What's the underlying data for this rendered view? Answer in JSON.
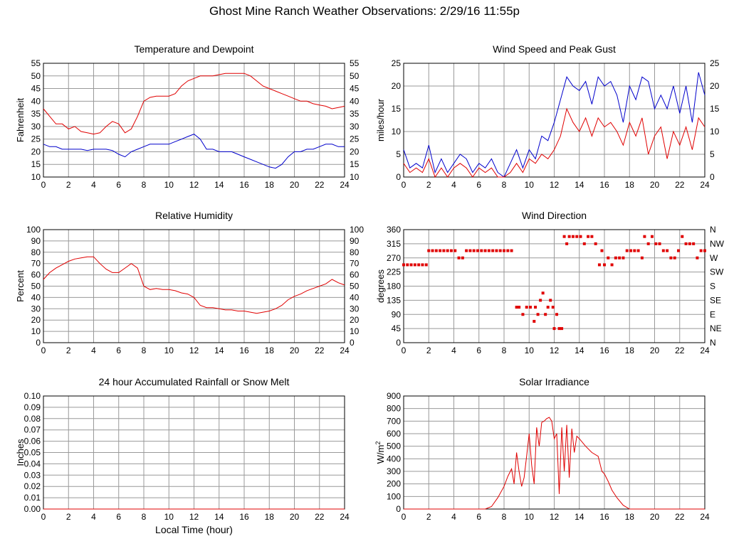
{
  "page": {
    "title": "Ghost Mine Ranch Weather Observations: 2/29/16 11:55p"
  },
  "colors": {
    "primary": "#e00000",
    "secondary": "#0000cc",
    "grid": "#999999"
  },
  "chart_data": [
    {
      "id": "temp",
      "type": "line",
      "title": "Temperature and Dewpoint",
      "ylabel": "Fahrenheit",
      "xlabel": "",
      "xlim": [
        0,
        24
      ],
      "ylim": [
        10,
        55
      ],
      "xticks": [
        0,
        2,
        4,
        6,
        8,
        10,
        12,
        14,
        16,
        18,
        20,
        22,
        24
      ],
      "yticks": [
        10,
        15,
        20,
        25,
        30,
        35,
        40,
        45,
        50,
        55
      ],
      "right_ticks": [
        "10",
        "15",
        "20",
        "25",
        "30",
        "35",
        "40",
        "45",
        "50",
        "55"
      ],
      "grid": true,
      "series": [
        {
          "color": "#e00000",
          "x": [
            0,
            0.5,
            1,
            1.5,
            2,
            2.5,
            3,
            3.5,
            4,
            4.5,
            5,
            5.5,
            6,
            6.5,
            7,
            7.5,
            8,
            8.5,
            9,
            9.5,
            10,
            10.5,
            11,
            11.5,
            12,
            12.5,
            13,
            13.5,
            14,
            14.5,
            15,
            15.5,
            16,
            16.5,
            17,
            17.5,
            18,
            18.5,
            19,
            19.5,
            20,
            20.5,
            21,
            21.5,
            22,
            22.5,
            23,
            23.5,
            24
          ],
          "y": [
            37,
            34,
            31,
            31,
            29,
            30,
            28,
            27.5,
            27,
            27.5,
            30,
            32,
            31,
            27.5,
            29,
            34,
            40,
            41.5,
            42,
            42,
            42,
            43,
            46,
            48,
            49,
            50,
            50,
            50,
            50.5,
            51,
            51,
            51,
            51,
            50,
            48,
            46,
            45,
            44,
            43,
            42,
            41,
            40,
            40,
            39,
            38.5,
            38,
            37,
            37.5,
            38
          ]
        },
        {
          "color": "#0000cc",
          "x": [
            0,
            0.5,
            1,
            1.5,
            2,
            2.5,
            3,
            3.5,
            4,
            4.5,
            5,
            5.5,
            6,
            6.5,
            7,
            7.5,
            8,
            8.5,
            9,
            9.5,
            10,
            10.5,
            11,
            11.5,
            12,
            12.5,
            13,
            13.5,
            14,
            14.5,
            15,
            15.5,
            16,
            16.5,
            17,
            17.5,
            18,
            18.5,
            19,
            19.5,
            20,
            20.5,
            21,
            21.5,
            22,
            22.5,
            23,
            23.5,
            24
          ],
          "y": [
            23,
            22,
            22,
            21,
            21,
            21,
            21,
            20.5,
            21,
            21,
            21,
            20.5,
            19,
            18,
            20,
            21,
            22,
            23,
            23,
            23,
            23,
            24,
            25,
            26,
            27,
            25,
            21,
            21,
            20,
            20,
            20,
            19,
            18,
            17,
            16,
            15,
            14,
            13.5,
            15,
            18,
            20,
            20,
            21,
            21,
            22,
            23,
            23,
            22,
            22
          ]
        }
      ]
    },
    {
      "id": "wind",
      "type": "line",
      "title": "Wind Speed and Peak Gust",
      "ylabel": "miles/hour",
      "xlabel": "",
      "xlim": [
        0,
        24
      ],
      "ylim": [
        0,
        25
      ],
      "xticks": [
        0,
        2,
        4,
        6,
        8,
        10,
        12,
        14,
        16,
        18,
        20,
        22,
        24
      ],
      "yticks": [
        0,
        5,
        10,
        15,
        20,
        25
      ],
      "right_ticks": [
        "0",
        "5",
        "10",
        "15",
        "20",
        "25"
      ],
      "grid": true,
      "series": [
        {
          "color": "#0000cc",
          "x": [
            0,
            0.5,
            1,
            1.5,
            2,
            2.5,
            3,
            3.5,
            4,
            4.5,
            5,
            5.5,
            6,
            6.5,
            7,
            7.5,
            8,
            8.5,
            9,
            9.5,
            10,
            10.5,
            11,
            11.5,
            12,
            12.5,
            13,
            13.5,
            14,
            14.5,
            15,
            15.5,
            16,
            16.5,
            17,
            17.5,
            18,
            18.5,
            19,
            19.5,
            20,
            20.5,
            21,
            21.5,
            22,
            22.5,
            23,
            23.5,
            24
          ],
          "y": [
            6,
            2,
            3,
            2,
            7,
            1,
            4,
            1,
            3,
            5,
            4,
            1,
            3,
            2,
            4,
            1,
            0,
            3,
            6,
            2,
            6,
            4,
            9,
            8,
            12,
            17,
            22,
            20,
            19,
            21,
            16,
            22,
            20,
            21,
            18,
            12,
            20,
            17,
            22,
            21,
            15,
            18,
            15,
            20,
            14,
            20,
            12,
            23,
            18
          ]
        },
        {
          "color": "#e00000",
          "x": [
            0,
            0.5,
            1,
            1.5,
            2,
            2.5,
            3,
            3.5,
            4,
            4.5,
            5,
            5.5,
            6,
            6.5,
            7,
            7.5,
            8,
            8.5,
            9,
            9.5,
            10,
            10.5,
            11,
            11.5,
            12,
            12.5,
            13,
            13.5,
            14,
            14.5,
            15,
            15.5,
            16,
            16.5,
            17,
            17.5,
            18,
            18.5,
            19,
            19.5,
            20,
            20.5,
            21,
            21.5,
            22,
            22.5,
            23,
            23.5,
            24
          ],
          "y": [
            3,
            1,
            2,
            1,
            4,
            0,
            2,
            0,
            2,
            3,
            2,
            0,
            2,
            1,
            2,
            0,
            0,
            1,
            3,
            1,
            4,
            3,
            5,
            4,
            6,
            9,
            15,
            12,
            10,
            13,
            9,
            13,
            11,
            12,
            10,
            7,
            12,
            9,
            13,
            5,
            9,
            11,
            4,
            10,
            7,
            11,
            6,
            13,
            11
          ]
        }
      ]
    },
    {
      "id": "rh",
      "type": "line",
      "title": "Relative Humidity",
      "ylabel": "Percent",
      "xlabel": "",
      "xlim": [
        0,
        24
      ],
      "ylim": [
        0,
        100
      ],
      "xticks": [
        0,
        2,
        4,
        6,
        8,
        10,
        12,
        14,
        16,
        18,
        20,
        22,
        24
      ],
      "yticks": [
        0,
        10,
        20,
        30,
        40,
        50,
        60,
        70,
        80,
        90,
        100
      ],
      "right_ticks": [
        "0",
        "10",
        "20",
        "30",
        "40",
        "50",
        "60",
        "70",
        "80",
        "90",
        "100"
      ],
      "grid": true,
      "series": [
        {
          "color": "#e00000",
          "x": [
            0,
            0.5,
            1,
            1.5,
            2,
            2.5,
            3,
            3.5,
            4,
            4.5,
            5,
            5.5,
            6,
            6.5,
            7,
            7.5,
            8,
            8.5,
            9,
            9.5,
            10,
            10.5,
            11,
            11.5,
            12,
            12.5,
            13,
            13.5,
            14,
            14.5,
            15,
            15.5,
            16,
            16.5,
            17,
            17.5,
            18,
            18.5,
            19,
            19.5,
            20,
            20.5,
            21,
            21.5,
            22,
            22.5,
            23,
            23.5,
            24
          ],
          "y": [
            56,
            62,
            66,
            69,
            72,
            74,
            75,
            76,
            76,
            70,
            65,
            62,
            62,
            66,
            70,
            66,
            50,
            47,
            48,
            47,
            47,
            46,
            44,
            43,
            40,
            33,
            31,
            31,
            30,
            29,
            29,
            28,
            28,
            27,
            26,
            27,
            28,
            30,
            33,
            38,
            41,
            43,
            46,
            48,
            50,
            52,
            56,
            53,
            51
          ]
        }
      ]
    },
    {
      "id": "dir",
      "type": "scatter",
      "title": "Wind Direction",
      "ylabel": "degrees",
      "xlabel": "",
      "xlim": [
        0,
        24
      ],
      "ylim": [
        0,
        360
      ],
      "xticks": [
        0,
        2,
        4,
        6,
        8,
        10,
        12,
        14,
        16,
        18,
        20,
        22,
        24
      ],
      "yticks": [
        0,
        45,
        90,
        135,
        180,
        225,
        270,
        315,
        360
      ],
      "right_ticks": [
        "N",
        "NE",
        "E",
        "SE",
        "S",
        "SW",
        "W",
        "NW",
        "N"
      ],
      "grid": true,
      "series": [
        {
          "color": "#e00000",
          "x": [
            0,
            0.3,
            0.6,
            0.9,
            1.2,
            1.5,
            1.8,
            2,
            2.3,
            2.6,
            2.9,
            3.2,
            3.5,
            3.8,
            4.1,
            4.4,
            4.7,
            5,
            5.3,
            5.6,
            5.9,
            6.2,
            6.5,
            6.8,
            7.1,
            7.4,
            7.7,
            8,
            8.3,
            8.6,
            9,
            9.2,
            9.5,
            9.8,
            10.1,
            10.4,
            10.5,
            10.7,
            10.9,
            11.1,
            11.3,
            11.5,
            11.7,
            11.9,
            12,
            12.2,
            12.4,
            12.6,
            12.8,
            13,
            13.2,
            13.5,
            13.8,
            14.1,
            14.4,
            14.7,
            15,
            15.3,
            15.6,
            15.8,
            16,
            16.3,
            16.6,
            16.9,
            17.2,
            17.5,
            17.8,
            18.1,
            18.4,
            18.7,
            19,
            19.2,
            19.5,
            19.8,
            20.1,
            20.4,
            20.7,
            21,
            21.3,
            21.6,
            21.9,
            22.2,
            22.5,
            22.8,
            23.1,
            23.4,
            23.7,
            24
          ],
          "y": [
            248,
            248,
            248,
            248,
            248,
            248,
            248,
            293,
            293,
            293,
            293,
            293,
            293,
            293,
            293,
            270,
            270,
            293,
            293,
            293,
            293,
            293,
            293,
            293,
            293,
            293,
            293,
            293,
            293,
            293,
            113,
            113,
            90,
            113,
            113,
            68,
            113,
            90,
            135,
            158,
            90,
            113,
            135,
            113,
            45,
            90,
            45,
            45,
            338,
            315,
            338,
            338,
            338,
            338,
            315,
            338,
            338,
            315,
            248,
            293,
            248,
            270,
            248,
            270,
            270,
            270,
            293,
            293,
            293,
            293,
            270,
            338,
            315,
            338,
            315,
            315,
            293,
            293,
            270,
            270,
            293,
            338,
            315,
            315,
            315,
            270,
            293,
            293
          ]
        }
      ]
    },
    {
      "id": "rain",
      "type": "line",
      "title": "24 hour Accumulated Rainfall or Snow Melt",
      "ylabel": "Inches",
      "xlabel": "Local Time (hour)",
      "xlim": [
        0,
        24
      ],
      "ylim": [
        0,
        0.1
      ],
      "xticks": [
        0,
        2,
        4,
        6,
        8,
        10,
        12,
        14,
        16,
        18,
        20,
        22,
        24
      ],
      "yticks": [
        0,
        0.01,
        0.02,
        0.03,
        0.04,
        0.05,
        0.06,
        0.07,
        0.08,
        0.09,
        0.1
      ],
      "ytick_labels": [
        "0.00",
        "0.01",
        "0.02",
        "0.03",
        "0.04",
        "0.05",
        "0.06",
        "0.07",
        "0.08",
        "0.09",
        "0.10"
      ],
      "right_ticks": [],
      "grid": true,
      "series": [
        {
          "color": "#e00000",
          "x": [
            0,
            24
          ],
          "y": [
            0,
            0
          ]
        }
      ]
    },
    {
      "id": "solar",
      "type": "line",
      "title": "Solar Irradiance",
      "ylabel": "W/m",
      "ylabel_sup": "2",
      "xlabel": "",
      "xlim": [
        0,
        24
      ],
      "ylim": [
        0,
        900
      ],
      "xticks": [
        0,
        2,
        4,
        6,
        8,
        10,
        12,
        14,
        16,
        18,
        20,
        22,
        24
      ],
      "yticks": [
        0,
        100,
        200,
        300,
        400,
        500,
        600,
        700,
        800,
        900
      ],
      "right_ticks": [],
      "grid": true,
      "series": [
        {
          "color": "#e00000",
          "x": [
            0,
            6.5,
            7,
            7.5,
            8,
            8.3,
            8.6,
            8.8,
            9,
            9.2,
            9.4,
            9.6,
            9.8,
            10,
            10.2,
            10.4,
            10.6,
            10.8,
            11,
            11.2,
            11.4,
            11.6,
            11.8,
            12,
            12.2,
            12.4,
            12.6,
            12.8,
            13,
            13.2,
            13.4,
            13.6,
            13.8,
            14,
            14.5,
            15,
            15.5,
            15.8,
            16,
            16.3,
            16.6,
            17,
            17.5,
            18,
            24
          ],
          "y": [
            0,
            0,
            20,
            90,
            180,
            260,
            320,
            200,
            450,
            300,
            180,
            250,
            420,
            600,
            350,
            200,
            650,
            500,
            690,
            700,
            720,
            730,
            700,
            560,
            600,
            120,
            650,
            300,
            670,
            250,
            640,
            450,
            580,
            560,
            500,
            450,
            420,
            300,
            280,
            220,
            150,
            90,
            30,
            0,
            0
          ]
        }
      ]
    }
  ]
}
